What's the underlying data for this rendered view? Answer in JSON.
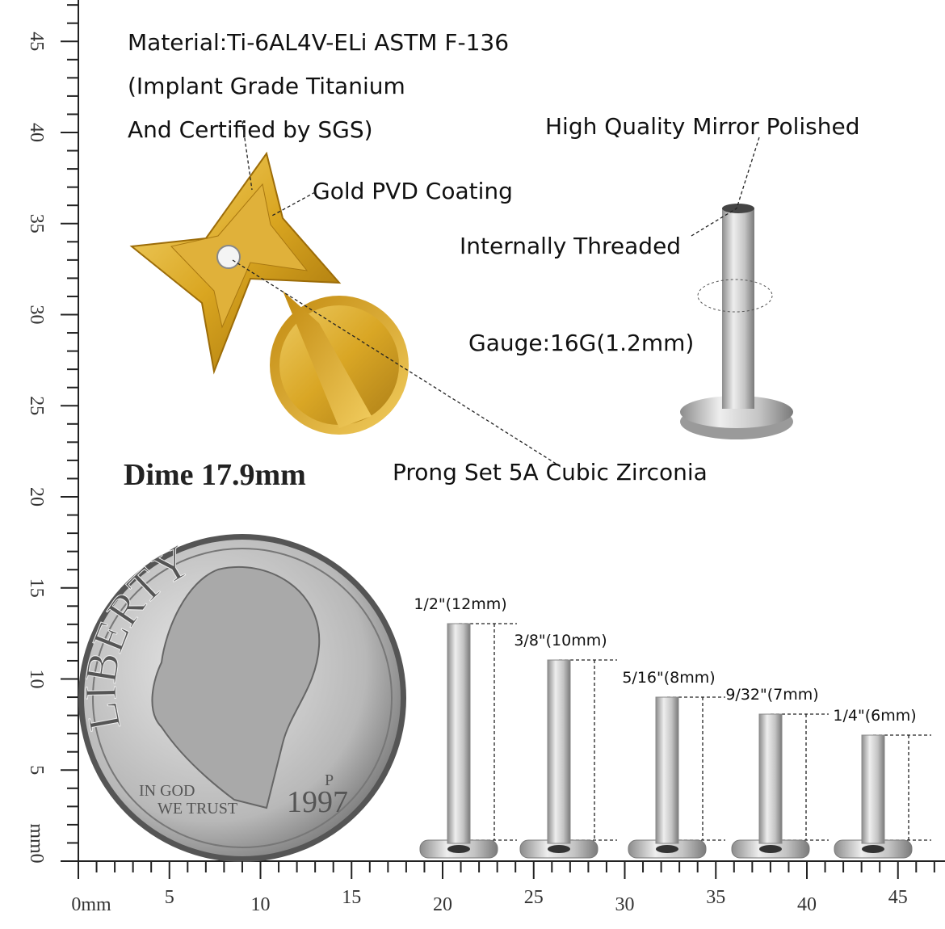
{
  "annotations": {
    "material": [
      "Material:Ti-6AL4V-ELi ASTM F-136",
      "(Implant Grade Titanium",
      "And Certified by SGS)"
    ],
    "mirror": "High Quality Mirror Polished",
    "coating": "Gold PVD Coating",
    "threaded": "Internally Threaded",
    "gauge": "Gauge:16G(1.2mm)",
    "dime": "Dime 17.9mm",
    "stone": "Prong Set 5A Cubic Zirconia"
  },
  "coin": {
    "legend": "LIBERTY",
    "motto": [
      "IN GOD",
      "WE TRUST"
    ],
    "year": "1997",
    "mint": "P"
  },
  "sizes": [
    "1/2\"(12mm)",
    "3/8\"(10mm)",
    "5/16\"(8mm)",
    "9/32\"(7mm)",
    "1/4\"(6mm)"
  ],
  "ruler": {
    "vertical": [
      "mm0",
      "5",
      "10",
      "15",
      "20",
      "25",
      "30",
      "35",
      "40",
      "45"
    ],
    "horizontal": [
      "0mm",
      "5",
      "10",
      "15",
      "20",
      "25",
      "30",
      "35",
      "40",
      "45"
    ]
  }
}
